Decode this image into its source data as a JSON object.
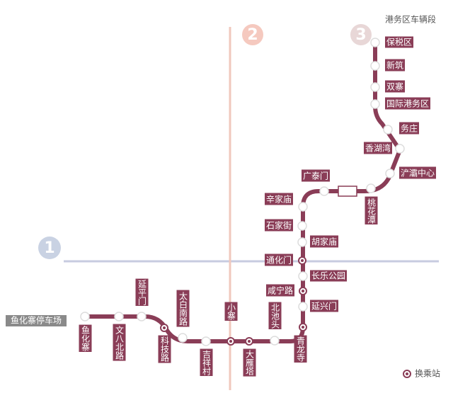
{
  "lines": [
    "1",
    "2",
    "3"
  ],
  "depot_top": "港务区车辆段",
  "depot_left": "鱼化寨停车场",
  "legend": "换乘站",
  "stations": [
    "鱼化寨",
    "文八北路",
    "延平门",
    "科技路",
    "太白南路",
    "吉祥村",
    "小寨",
    "大雁塔",
    "北池头",
    "青龙寺",
    "延兴门",
    "咸宁路",
    "长乐公园",
    "通化门",
    "胡家庙",
    "石家街",
    "辛家庙",
    "广泰门",
    "桃花潭",
    "浐灞中心",
    "香湖湾",
    "务庄",
    "国际港务区",
    "双寨",
    "新筑",
    "保税区"
  ]
}
